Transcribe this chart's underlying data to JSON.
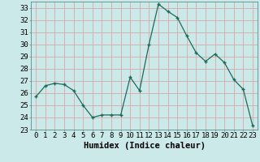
{
  "x": [
    0,
    1,
    2,
    3,
    4,
    5,
    6,
    7,
    8,
    9,
    10,
    11,
    12,
    13,
    14,
    15,
    16,
    17,
    18,
    19,
    20,
    21,
    22,
    23
  ],
  "y": [
    25.7,
    26.6,
    26.8,
    26.7,
    26.2,
    25.0,
    24.0,
    24.2,
    24.2,
    24.2,
    27.3,
    26.2,
    30.0,
    33.3,
    32.7,
    32.2,
    30.7,
    29.3,
    28.6,
    29.2,
    28.5,
    27.1,
    26.3,
    23.3
  ],
  "line_color": "#1a6b5a",
  "marker": "+",
  "marker_size": 3,
  "bg_color": "#cce9e9",
  "grid_color": "#d8a8a8",
  "xlabel": "Humidex (Indice chaleur)",
  "ylim": [
    23,
    33.5
  ],
  "xlim": [
    -0.5,
    23.5
  ],
  "yticks": [
    23,
    24,
    25,
    26,
    27,
    28,
    29,
    30,
    31,
    32,
    33
  ],
  "xtick_labels": [
    "0",
    "1",
    "2",
    "3",
    "4",
    "5",
    "6",
    "7",
    "8",
    "9",
    "10",
    "11",
    "12",
    "13",
    "14",
    "15",
    "16",
    "17",
    "18",
    "19",
    "20",
    "21",
    "22",
    "23"
  ],
  "xlabel_fontsize": 7.5,
  "tick_fontsize": 6.5,
  "line_width": 0.9
}
